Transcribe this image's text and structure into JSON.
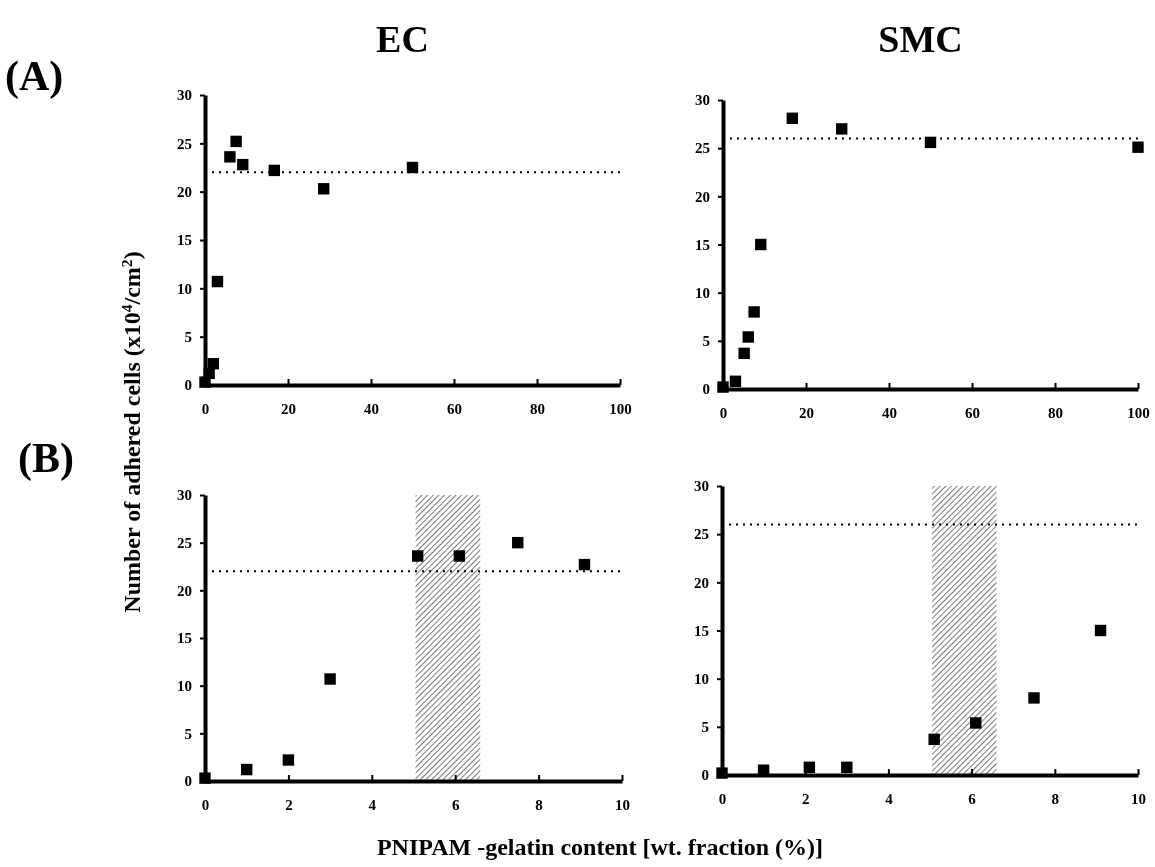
{
  "chart_data": [
    {
      "type": "scatter",
      "title": "EC",
      "annotations": [
        "(A)"
      ],
      "marker": "square",
      "xlim": [
        0,
        100
      ],
      "xticks": [
        0,
        20,
        40,
        60,
        80,
        100
      ],
      "ylim": [
        0,
        30
      ],
      "yticks": [
        0,
        5,
        10,
        15,
        20,
        25,
        30
      ],
      "series": [
        {
          "color": "#000000",
          "x": [
            0,
            1,
            1.5,
            2,
            3,
            5,
            6,
            7.5,
            9.1,
            16.7,
            28.6,
            50
          ],
          "values": [
            0.3,
            1.2,
            null,
            2.2,
            10.7,
            null,
            23.6,
            25.2,
            22.8,
            22.2,
            20.3,
            22.5
          ]
        }
      ],
      "ref_lines": [
        {
          "axis": "y",
          "value": 22,
          "color": "#000000",
          "line_style": "dotted"
        }
      ]
    },
    {
      "type": "scatter",
      "title": "SMC",
      "marker": "square",
      "xlim": [
        0,
        100
      ],
      "xticks": [
        0,
        20,
        40,
        60,
        80,
        100
      ],
      "ylim": [
        0,
        30
      ],
      "yticks": [
        0,
        5,
        10,
        15,
        20,
        25,
        30
      ],
      "series": [
        {
          "color": "#000000",
          "x": [
            0,
            1,
            2.1,
            3,
            5.1,
            6.1,
            7.5,
            9.1,
            16.7,
            28.6,
            50,
            100
          ],
          "values": [
            0.2,
            null,
            null,
            0.8,
            3.7,
            5.4,
            8,
            15,
            28.1,
            27,
            25.6,
            25.1
          ]
        }
      ],
      "ref_lines": [
        {
          "axis": "y",
          "value": 26,
          "color": "#000000",
          "line_style": "dotted"
        }
      ]
    },
    {
      "type": "scatter",
      "annotations": [
        "(B)"
      ],
      "ylabel": "Number of adhered cells (x10$^{4}$/cm$^{2}$)",
      "marker": "square",
      "xlim": [
        0,
        10
      ],
      "xticks": [
        0,
        2,
        4,
        6,
        8,
        10
      ],
      "ylim": [
        0,
        30
      ],
      "yticks": [
        0,
        5,
        10,
        15,
        20,
        25,
        30
      ],
      "series": [
        {
          "color": "#000000",
          "x": [
            0,
            1,
            2,
            3,
            5.1,
            6.1,
            7.5,
            9.1
          ],
          "values": [
            0.3,
            1.2,
            2.2,
            10.7,
            23.6,
            23.6,
            25,
            22.7
          ]
        }
      ],
      "ref_lines": [
        {
          "axis": "y",
          "value": 22,
          "color": "#000000",
          "line_style": "dotted"
        }
      ],
      "bands": [
        {
          "axis": "x",
          "from": 5.05,
          "to": 6.6,
          "color": "#555555"
        }
      ]
    },
    {
      "type": "scatter",
      "xlabel": "PNIPAM -gelatin content [wt. fraction (%)]",
      "marker": "square",
      "xlim": [
        0,
        10
      ],
      "xticks": [
        0,
        2,
        4,
        6,
        8,
        10
      ],
      "ylim": [
        0,
        30
      ],
      "yticks": [
        0,
        5,
        10,
        15,
        20,
        25,
        30
      ],
      "series": [
        {
          "color": "#000000",
          "x": [
            0,
            1,
            2.1,
            3,
            5.1,
            6.1,
            7.5,
            9.1
          ],
          "values": [
            0.2,
            0.5,
            0.8,
            0.8,
            3.7,
            5.4,
            8,
            15
          ]
        }
      ],
      "ref_lines": [
        {
          "axis": "y",
          "value": 26,
          "color": "#000000",
          "line_style": "dotted"
        }
      ],
      "bands": [
        {
          "axis": "x",
          "from": 5.05,
          "to": 6.6,
          "color": "#555555"
        }
      ]
    }
  ]
}
